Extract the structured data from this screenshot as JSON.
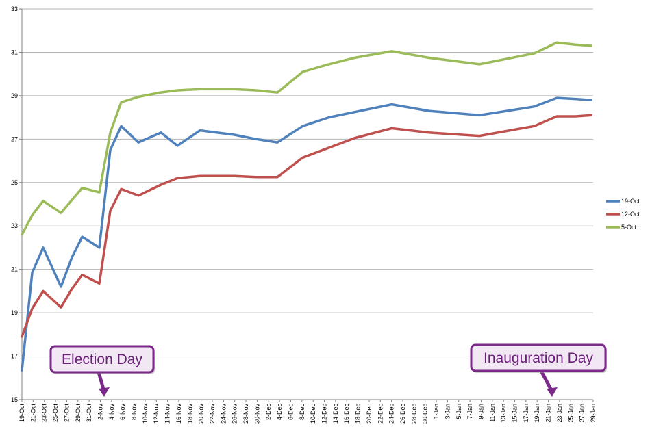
{
  "chart_data": {
    "type": "line",
    "title": "",
    "xlabel": "",
    "ylabel": "",
    "ylim": [
      15,
      33
    ],
    "yticks": [
      15,
      17,
      19,
      21,
      23,
      25,
      27,
      29,
      31,
      33
    ],
    "grid": "horizontal",
    "legend": "right",
    "x_labels": [
      "19-Oct",
      "21-Oct",
      "23-Oct",
      "25-Oct",
      "27-Oct",
      "29-Oct",
      "31-Oct",
      "2-Nov",
      "4-Nov",
      "6-Nov",
      "8-Nov",
      "10-Nov",
      "12-Nov",
      "14-Nov",
      "16-Nov",
      "18-Nov",
      "20-Nov",
      "22-Nov",
      "24-Nov",
      "26-Nov",
      "28-Nov",
      "30-Nov",
      "2-Dec",
      "4-Dec",
      "6-Dec",
      "8-Dec",
      "10-Dec",
      "12-Dec",
      "14-Dec",
      "16-Dec",
      "18-Dec",
      "20-Dec",
      "22-Dec",
      "24-Dec",
      "26-Dec",
      "28-Dec",
      "30-Dec",
      "1-Jan",
      "3-Jan",
      "5-Jan",
      "7-Jan",
      "9-Jan",
      "11-Jan",
      "13-Jan",
      "15-Jan",
      "17-Jan",
      "19-Jan",
      "21-Jan",
      "23-Jan",
      "25-Jan",
      "27-Jan",
      "29-Jan"
    ],
    "series": [
      {
        "name": "19-Oct",
        "color": "#4f81bd",
        "points": [
          [
            0,
            16.35
          ],
          [
            1,
            20.85
          ],
          [
            2,
            22.0
          ],
          [
            3,
            20.2
          ],
          [
            4,
            21.55
          ],
          [
            5,
            22.5
          ],
          [
            6,
            22.0
          ],
          [
            7,
            26.5
          ],
          [
            8,
            27.6
          ],
          [
            9,
            26.85
          ],
          [
            10,
            27.3
          ],
          [
            11,
            26.7
          ],
          [
            12,
            27.4
          ],
          [
            13,
            27.2
          ],
          [
            14,
            27.0
          ],
          [
            15,
            26.85
          ],
          [
            16,
            27.6
          ],
          [
            17,
            28.0
          ],
          [
            18,
            28.25
          ],
          [
            19,
            28.6
          ],
          [
            20,
            28.3
          ],
          [
            21,
            28.1
          ],
          [
            22,
            28.5
          ],
          [
            23,
            28.9
          ],
          [
            24,
            28.85
          ],
          [
            25,
            28.8
          ]
        ]
      },
      {
        "name": "12-Oct",
        "color": "#c0504d",
        "points": [
          [
            0,
            17.9
          ],
          [
            1,
            19.2
          ],
          [
            2,
            20.0
          ],
          [
            3,
            19.25
          ],
          [
            4,
            20.1
          ],
          [
            5,
            20.75
          ],
          [
            6,
            20.35
          ],
          [
            7,
            23.7
          ],
          [
            8,
            24.7
          ],
          [
            9,
            24.4
          ],
          [
            10,
            24.9
          ],
          [
            11,
            25.2
          ],
          [
            12,
            25.3
          ],
          [
            13,
            25.3
          ],
          [
            14,
            25.25
          ],
          [
            15,
            25.25
          ],
          [
            16,
            26.15
          ],
          [
            17,
            26.6
          ],
          [
            18,
            27.05
          ],
          [
            19,
            27.5
          ],
          [
            20,
            27.3
          ],
          [
            21,
            27.15
          ],
          [
            22,
            27.6
          ],
          [
            23,
            28.05
          ],
          [
            24,
            28.05
          ],
          [
            25,
            28.1
          ]
        ]
      },
      {
        "name": "5-Oct",
        "color": "#9bbb59",
        "points": [
          [
            0,
            22.6
          ],
          [
            1,
            23.5
          ],
          [
            2,
            24.15
          ],
          [
            3,
            23.6
          ],
          [
            4,
            24.2
          ],
          [
            5,
            24.75
          ],
          [
            6,
            24.55
          ],
          [
            7,
            27.3
          ],
          [
            8,
            28.7
          ],
          [
            9,
            28.95
          ],
          [
            10,
            29.15
          ],
          [
            11,
            29.25
          ],
          [
            12,
            29.3
          ],
          [
            13,
            29.3
          ],
          [
            14,
            29.25
          ],
          [
            15,
            29.15
          ],
          [
            16,
            30.1
          ],
          [
            17,
            30.45
          ],
          [
            18,
            30.75
          ],
          [
            19,
            31.05
          ],
          [
            20,
            30.75
          ],
          [
            21,
            30.45
          ],
          [
            22,
            30.95
          ],
          [
            23,
            31.45
          ],
          [
            24,
            31.35
          ],
          [
            25,
            31.3
          ]
        ]
      }
    ],
    "annotations": [
      {
        "text": "Election Day"
      },
      {
        "text": "Inauguration Day"
      }
    ]
  }
}
